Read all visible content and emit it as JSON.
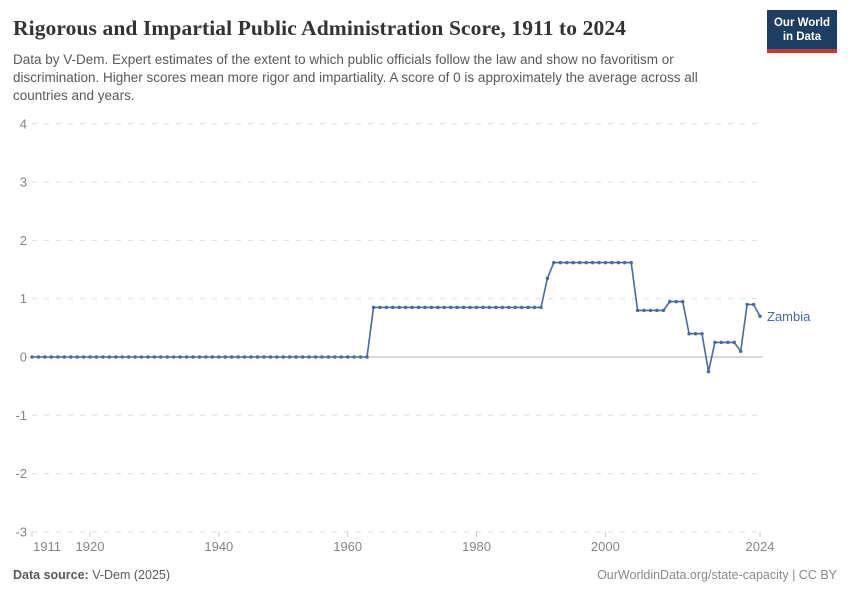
{
  "header": {
    "title": "Rigorous and Impartial Public Administration Score, 1911 to 2024",
    "subtitle": "Data by V-Dem. Expert estimates of the extent to which public officials follow the law and show no favoritism or discrimination. Higher scores mean more rigor and impartiality. A score of 0 is approximately the average across all countries and years.",
    "logo_line1": "Our World",
    "logo_line2": "in Data"
  },
  "colors": {
    "line": "#4c6a9c",
    "logo_bg": "#1d3d63",
    "logo_bar": "#cd3434",
    "grid": "#dedede",
    "zero_line": "#b0b0b0",
    "axis_text": "#858585",
    "tick": "#c9c9c9"
  },
  "legend": {
    "entity_label": "Zambia"
  },
  "footer": {
    "data_source_label": "Data source:",
    "data_source_value": " V-Dem (2025)",
    "attribution": "OurWorldinData.org/state-capacity | CC BY"
  },
  "chart_data": {
    "type": "line",
    "title": "Rigorous and Impartial Public Administration Score, 1911 to 2024",
    "xlabel": "",
    "ylabel": "",
    "ylim": [
      -3,
      4
    ],
    "xlim": [
      1911,
      2024
    ],
    "yticks": [
      4,
      3,
      2,
      1,
      0,
      -1,
      -2,
      -3
    ],
    "xticks": [
      1911,
      1920,
      1940,
      1960,
      1980,
      2000,
      2024
    ],
    "grid": "dashed-horizontal",
    "legend_position": "end-of-line",
    "line_color": "#4c6a9c",
    "marker": "dot-every-year",
    "series": [
      {
        "name": "Zambia",
        "start_year": 1911,
        "end_year": 2024,
        "values": [
          0,
          0,
          0,
          0,
          0,
          0,
          0,
          0,
          0,
          0,
          0,
          0,
          0,
          0,
          0,
          0,
          0,
          0,
          0,
          0,
          0,
          0,
          0,
          0,
          0,
          0,
          0,
          0,
          0,
          0,
          0,
          0,
          0,
          0,
          0,
          0,
          0,
          0,
          0,
          0,
          0,
          0,
          0,
          0,
          0,
          0,
          0,
          0,
          0,
          0,
          0,
          0,
          0,
          0.85,
          0.85,
          0.85,
          0.85,
          0.85,
          0.85,
          0.85,
          0.85,
          0.85,
          0.85,
          0.85,
          0.85,
          0.85,
          0.85,
          0.85,
          0.85,
          0.85,
          0.85,
          0.85,
          0.85,
          0.85,
          0.85,
          0.85,
          0.85,
          0.85,
          0.85,
          0.85,
          1.35,
          1.62,
          1.62,
          1.62,
          1.62,
          1.62,
          1.62,
          1.62,
          1.62,
          1.62,
          1.62,
          1.62,
          1.62,
          1.62,
          0.8,
          0.8,
          0.8,
          0.8,
          0.8,
          0.95,
          0.95,
          0.95,
          0.4,
          0.4,
          0.4,
          -0.25,
          0.25,
          0.25,
          0.25,
          0.25,
          0.1,
          0.9,
          0.9,
          0.7
        ]
      }
    ]
  }
}
